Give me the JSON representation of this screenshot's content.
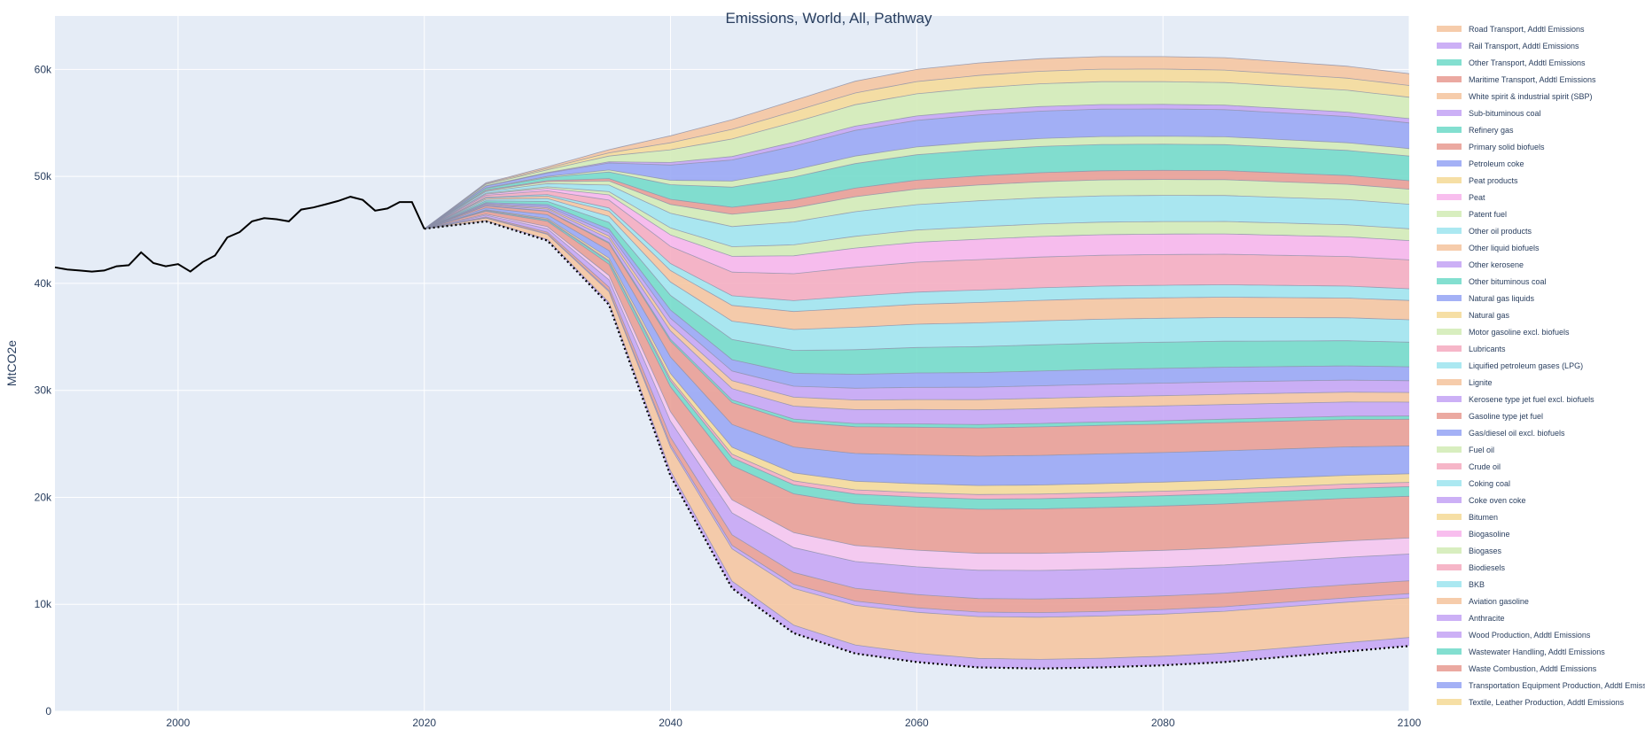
{
  "chart_data": {
    "type": "area",
    "title": "Emissions, World, All, Pathway",
    "xlabel": "",
    "ylabel": "MtCO2e",
    "xlim": [
      1990,
      2100
    ],
    "ylim": [
      0,
      65000
    ],
    "x_ticks": [
      2000,
      2020,
      2040,
      2060,
      2080,
      2100
    ],
    "y_ticks": [
      {
        "value": 0,
        "label": "0"
      },
      {
        "value": 10000,
        "label": "10k"
      },
      {
        "value": 20000,
        "label": "20k"
      },
      {
        "value": 30000,
        "label": "30k"
      },
      {
        "value": 40000,
        "label": "40k"
      },
      {
        "value": 50000,
        "label": "50k"
      },
      {
        "value": 60000,
        "label": "60k"
      }
    ],
    "grid": true,
    "legend_position": "right",
    "historical": {
      "x": [
        1990,
        1991,
        1992,
        1993,
        1994,
        1995,
        1996,
        1997,
        1998,
        1999,
        2000,
        2001,
        2002,
        2003,
        2004,
        2005,
        2006,
        2007,
        2008,
        2009,
        2010,
        2011,
        2012,
        2013,
        2014,
        2015,
        2016,
        2017,
        2018,
        2019,
        2020
      ],
      "values": [
        41500,
        41300,
        41200,
        41100,
        41200,
        41600,
        41700,
        42900,
        41900,
        41600,
        41800,
        41100,
        42000,
        42600,
        44300,
        44800,
        45800,
        46100,
        46000,
        45800,
        46900,
        47100,
        47400,
        47700,
        48100,
        47800,
        46800,
        47000,
        47600,
        47600,
        45100
      ]
    },
    "pathway_x": [
      2020,
      2025,
      2030,
      2035,
      2040,
      2045,
      2050,
      2055,
      2060,
      2065,
      2070,
      2075,
      2080,
      2085,
      2090,
      2095,
      2100
    ],
    "lower_bound": [
      45100,
      45800,
      44000,
      38000,
      22000,
      11500,
      7300,
      5400,
      4600,
      4100,
      4000,
      4100,
      4300,
      4600,
      5100,
      5600,
      6100
    ],
    "top_total": [
      45100,
      49400,
      50900,
      52500,
      53800,
      55300,
      57100,
      58900,
      60000,
      60600,
      61000,
      61200,
      61200,
      61100,
      60700,
      60300,
      59600
    ],
    "colors": [
      "#c7a7f5",
      "#f5c7a2",
      "#9aa9f5",
      "#e9a097",
      "#f5c7f0",
      "#c7a7f5",
      "#75dccb",
      "#f5aec2",
      "#a2e6f0",
      "#d4ecb8",
      "#f5dc9b",
      "#f7b7ec"
    ],
    "series": [
      {
        "name": "Road Transport, Addtl Emissions",
        "end_values": [
          6,
          0,
          0,
          0,
          0,
          0,
          0,
          0,
          0,
          0,
          0,
          0,
          0,
          0,
          0,
          0,
          0
        ]
      },
      {
        "name": "Rail Transport, Addtl Emissions"
      },
      {
        "name": "Other Transport, Addtl Emissions"
      },
      {
        "name": "Maritime Transport, Addtl Emissions"
      },
      {
        "name": "White spirit & industrial spirit (SBP)"
      },
      {
        "name": "Sub-bituminous coal"
      },
      {
        "name": "Refinery gas"
      },
      {
        "name": "Primary solid biofuels"
      },
      {
        "name": "Petroleum coke"
      },
      {
        "name": "Peat products"
      },
      {
        "name": "Peat"
      },
      {
        "name": "Patent fuel"
      },
      {
        "name": "Other oil products"
      },
      {
        "name": "Other liquid biofuels"
      },
      {
        "name": "Other kerosene"
      },
      {
        "name": "Other bituminous coal"
      },
      {
        "name": "Natural gas liquids"
      },
      {
        "name": "Natural gas"
      },
      {
        "name": "Motor gasoline excl. biofuels"
      },
      {
        "name": "Lubricants"
      },
      {
        "name": "Liquified petroleum gases (LPG)"
      },
      {
        "name": "Lignite"
      },
      {
        "name": "Kerosene type jet fuel excl. biofuels"
      },
      {
        "name": "Gasoline type jet fuel"
      },
      {
        "name": "Gas/diesel oil excl. biofuels"
      },
      {
        "name": "Fuel oil"
      },
      {
        "name": "Crude oil"
      },
      {
        "name": "Coking coal"
      },
      {
        "name": "Coke oven coke"
      },
      {
        "name": "Bitumen"
      },
      {
        "name": "Biogasoline"
      },
      {
        "name": "Biogases"
      },
      {
        "name": "Biodiesels"
      },
      {
        "name": "BKB"
      },
      {
        "name": "Aviation gasoline"
      },
      {
        "name": "Anthracite"
      },
      {
        "name": "Wood Production, Addtl Emissions"
      },
      {
        "name": "Wastewater Handling, Addtl Emissions"
      },
      {
        "name": "Waste Combustion, Addtl Emissions"
      },
      {
        "name": "Transportation Equipment Production, Addtl Emissions"
      },
      {
        "name": "Textile, Leather Production, Addtl Emissions"
      }
    ],
    "bands_2100": [
      {
        "color": "#c7a7f5",
        "lower": 6100,
        "upper": 6900
      },
      {
        "color": "#f5c7a2",
        "lower": 6900,
        "upper": 10600
      },
      {
        "color": "#c7a7f5",
        "lower": 10600,
        "upper": 11000
      },
      {
        "color": "#e9a097",
        "lower": 11000,
        "upper": 12200
      },
      {
        "color": "#c7a7f5",
        "lower": 12200,
        "upper": 14700
      },
      {
        "color": "#f5c7f0",
        "lower": 14700,
        "upper": 16200
      },
      {
        "color": "#e9a097",
        "lower": 16200,
        "upper": 20100
      },
      {
        "color": "#75dccb",
        "lower": 20100,
        "upper": 21000
      },
      {
        "color": "#f5aec2",
        "lower": 21000,
        "upper": 21400
      },
      {
        "color": "#f5dc9b",
        "lower": 21400,
        "upper": 22200
      },
      {
        "color": "#9aa9f5",
        "lower": 22200,
        "upper": 24800
      },
      {
        "color": "#e9a097",
        "lower": 24800,
        "upper": 27300
      },
      {
        "color": "#75dccb",
        "lower": 27300,
        "upper": 27600
      },
      {
        "color": "#c7a7f5",
        "lower": 27600,
        "upper": 28900
      },
      {
        "color": "#f5c7a2",
        "lower": 28900,
        "upper": 29800
      },
      {
        "color": "#c7a7f5",
        "lower": 29800,
        "upper": 30900
      },
      {
        "color": "#9aa9f5",
        "lower": 30900,
        "upper": 32200
      },
      {
        "color": "#75dccb",
        "lower": 32200,
        "upper": 34500
      },
      {
        "color": "#a2e6f0",
        "lower": 34500,
        "upper": 36600
      },
      {
        "color": "#f5c7a2",
        "lower": 36600,
        "upper": 38400
      },
      {
        "color": "#a2e6f0",
        "lower": 38400,
        "upper": 39500
      },
      {
        "color": "#f5aec2",
        "lower": 39500,
        "upper": 42200
      },
      {
        "color": "#f7b7ec",
        "lower": 42200,
        "upper": 44000
      },
      {
        "color": "#d4ecb8",
        "lower": 44000,
        "upper": 45100
      },
      {
        "color": "#a2e6f0",
        "lower": 45100,
        "upper": 47400
      },
      {
        "color": "#d4ecb8",
        "lower": 47400,
        "upper": 48800
      },
      {
        "color": "#e9a097",
        "lower": 48800,
        "upper": 49600
      },
      {
        "color": "#75dccb",
        "lower": 49600,
        "upper": 51900
      },
      {
        "color": "#d4ecb8",
        "lower": 51900,
        "upper": 52600
      },
      {
        "color": "#9aa9f5",
        "lower": 52600,
        "upper": 55000
      },
      {
        "color": "#c7a7f5",
        "lower": 55000,
        "upper": 55400
      },
      {
        "color": "#d4ecb8",
        "lower": 55400,
        "upper": 57400
      },
      {
        "color": "#f5dc9b",
        "lower": 57400,
        "upper": 58500
      },
      {
        "color": "#f5c7a2",
        "lower": 58500,
        "upper": 59600
      }
    ],
    "legend": [
      {
        "name": "Road Transport, Addtl Emissions",
        "color": "#f5c7a2"
      },
      {
        "name": "Rail Transport, Addtl Emissions",
        "color": "#c7a7f5"
      },
      {
        "name": "Other Transport, Addtl Emissions",
        "color": "#75dccb"
      },
      {
        "name": "Maritime Transport, Addtl Emissions",
        "color": "#e9a097"
      },
      {
        "name": "White spirit & industrial spirit (SBP)",
        "color": "#f5c7a2"
      },
      {
        "name": "Sub-bituminous coal",
        "color": "#c7a7f5"
      },
      {
        "name": "Refinery gas",
        "color": "#75dccb"
      },
      {
        "name": "Primary solid biofuels",
        "color": "#e9a097"
      },
      {
        "name": "Petroleum coke",
        "color": "#9aa9f5"
      },
      {
        "name": "Peat products",
        "color": "#f5dc9b"
      },
      {
        "name": "Peat",
        "color": "#f7b7ec"
      },
      {
        "name": "Patent fuel",
        "color": "#d4ecb8"
      },
      {
        "name": "Other oil products",
        "color": "#a2e6f0"
      },
      {
        "name": "Other liquid biofuels",
        "color": "#f5c7a2"
      },
      {
        "name": "Other kerosene",
        "color": "#c7a7f5"
      },
      {
        "name": "Other bituminous coal",
        "color": "#75dccb"
      },
      {
        "name": "Natural gas liquids",
        "color": "#9aa9f5"
      },
      {
        "name": "Natural gas",
        "color": "#f5dc9b"
      },
      {
        "name": "Motor gasoline excl. biofuels",
        "color": "#d4ecb8"
      },
      {
        "name": "Lubricants",
        "color": "#f5aec2"
      },
      {
        "name": "Liquified petroleum gases (LPG)",
        "color": "#a2e6f0"
      },
      {
        "name": "Lignite",
        "color": "#f5c7a2"
      },
      {
        "name": "Kerosene type jet fuel excl. biofuels",
        "color": "#c7a7f5"
      },
      {
        "name": "Gasoline type jet fuel",
        "color": "#e9a097"
      },
      {
        "name": "Gas/diesel oil excl. biofuels",
        "color": "#9aa9f5"
      },
      {
        "name": "Fuel oil",
        "color": "#d4ecb8"
      },
      {
        "name": "Crude oil",
        "color": "#f5aec2"
      },
      {
        "name": "Coking coal",
        "color": "#a2e6f0"
      },
      {
        "name": "Coke oven coke",
        "color": "#c7a7f5"
      },
      {
        "name": "Bitumen",
        "color": "#f5dc9b"
      },
      {
        "name": "Biogasoline",
        "color": "#f7b7ec"
      },
      {
        "name": "Biogases",
        "color": "#d4ecb8"
      },
      {
        "name": "Biodiesels",
        "color": "#f5aec2"
      },
      {
        "name": "BKB",
        "color": "#a2e6f0"
      },
      {
        "name": "Aviation gasoline",
        "color": "#f5c7a2"
      },
      {
        "name": "Anthracite",
        "color": "#c7a7f5"
      },
      {
        "name": "Wood Production, Addtl Emissions",
        "color": "#c7a7f5"
      },
      {
        "name": "Wastewater Handling, Addtl Emissions",
        "color": "#75dccb"
      },
      {
        "name": "Waste Combustion, Addtl Emissions",
        "color": "#e9a097"
      },
      {
        "name": "Transportation Equipment Production, Addtl Emissions",
        "color": "#9aa9f5"
      },
      {
        "name": "Textile, Leather Production, Addtl Emissions",
        "color": "#f5dc9b"
      }
    ]
  }
}
